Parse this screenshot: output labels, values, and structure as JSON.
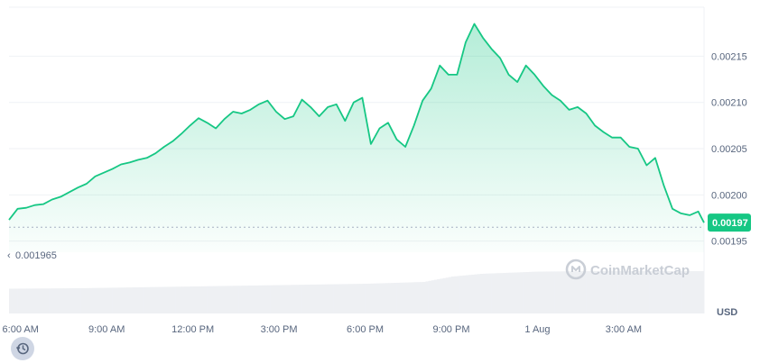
{
  "chart_data": {
    "type": "area",
    "currency_unit": "USD",
    "watermark": "CoinMarketCap",
    "line_color": "#16c784",
    "reference_label": "0.001965",
    "reference_value": 0.001965,
    "current_price_label": "0.00197",
    "current_price": 0.00197,
    "y_ticks": [
      {
        "value": 0.00195,
        "label": "0.00195"
      },
      {
        "value": 0.002,
        "label": "0.00200"
      },
      {
        "value": 0.00205,
        "label": "0.00205"
      },
      {
        "value": 0.0021,
        "label": "0.00210"
      },
      {
        "value": 0.00215,
        "label": "0.00215"
      }
    ],
    "ylim": [
      0.001938,
      0.002203
    ],
    "x_ticks": [
      {
        "hour": 6,
        "label": "6:00 AM"
      },
      {
        "hour": 9,
        "label": "9:00 AM"
      },
      {
        "hour": 12,
        "label": "12:00 PM"
      },
      {
        "hour": 15,
        "label": "3:00 PM"
      },
      {
        "hour": 18,
        "label": "6:00 PM"
      },
      {
        "hour": 21,
        "label": "9:00 PM"
      },
      {
        "hour": 24,
        "label": "1 Aug"
      },
      {
        "hour": 27,
        "label": "3:00 AM"
      }
    ],
    "xlim": [
      5.6,
      29.8
    ],
    "series": [
      {
        "hour": [
          5.6,
          5.9,
          6.2,
          6.5,
          6.8,
          7.1,
          7.4,
          7.7,
          8.0,
          8.3,
          8.6,
          8.9,
          9.2,
          9.5,
          9.8,
          10.1,
          10.4,
          10.7,
          11.0,
          11.3,
          11.6,
          11.9,
          12.2,
          12.5,
          12.8,
          13.1,
          13.4,
          13.7,
          14.0,
          14.3,
          14.6,
          14.9,
          15.2,
          15.5,
          15.8,
          16.1,
          16.4,
          16.7,
          17.0,
          17.3,
          17.6,
          17.9,
          18.2,
          18.5,
          18.8,
          19.1,
          19.4,
          19.7,
          20.0,
          20.3,
          20.6,
          20.9,
          21.2,
          21.5,
          21.8,
          22.1,
          22.4,
          22.7,
          23.0,
          23.3,
          23.6,
          23.9,
          24.2,
          24.5,
          24.8,
          25.1,
          25.4,
          25.7,
          26.0,
          26.3,
          26.6,
          26.9,
          27.2,
          27.5,
          27.8,
          28.1,
          28.4,
          28.7,
          29.0,
          29.3,
          29.6,
          29.8
        ],
        "price": [
          0.001973,
          0.001985,
          0.001986,
          0.001989,
          0.00199,
          0.001995,
          0.001998,
          0.002003,
          0.002008,
          0.002012,
          0.00202,
          0.002024,
          0.002028,
          0.002033,
          0.002035,
          0.002038,
          0.00204,
          0.002045,
          0.002052,
          0.002058,
          0.002066,
          0.002075,
          0.002083,
          0.002078,
          0.002072,
          0.002082,
          0.00209,
          0.002088,
          0.002092,
          0.002098,
          0.002102,
          0.00209,
          0.002082,
          0.002085,
          0.002103,
          0.002095,
          0.002085,
          0.002095,
          0.002098,
          0.00208,
          0.0021,
          0.002105,
          0.002055,
          0.002072,
          0.002078,
          0.00206,
          0.002052,
          0.002075,
          0.002102,
          0.002115,
          0.00214,
          0.00213,
          0.00213,
          0.002165,
          0.002185,
          0.00217,
          0.002158,
          0.002148,
          0.00213,
          0.002122,
          0.00214,
          0.00213,
          0.002118,
          0.002108,
          0.002102,
          0.002092,
          0.002095,
          0.002088,
          0.002075,
          0.002068,
          0.002062,
          0.002062,
          0.002052,
          0.00205,
          0.002032,
          0.00204,
          0.00201,
          0.001985,
          0.00198,
          0.001978,
          0.001982,
          0.00197
        ]
      }
    ],
    "volume_bars": {
      "hour": [
        5.6,
        8.0,
        10.0,
        12.0,
        14.0,
        16.0,
        18.0,
        20.0,
        21.0,
        22.0,
        24.0,
        26.0,
        28.0,
        29.8
      ],
      "relative": [
        0.55,
        0.56,
        0.58,
        0.6,
        0.62,
        0.64,
        0.66,
        0.7,
        0.82,
        0.88,
        0.93,
        0.94,
        0.94,
        0.94
      ]
    }
  }
}
